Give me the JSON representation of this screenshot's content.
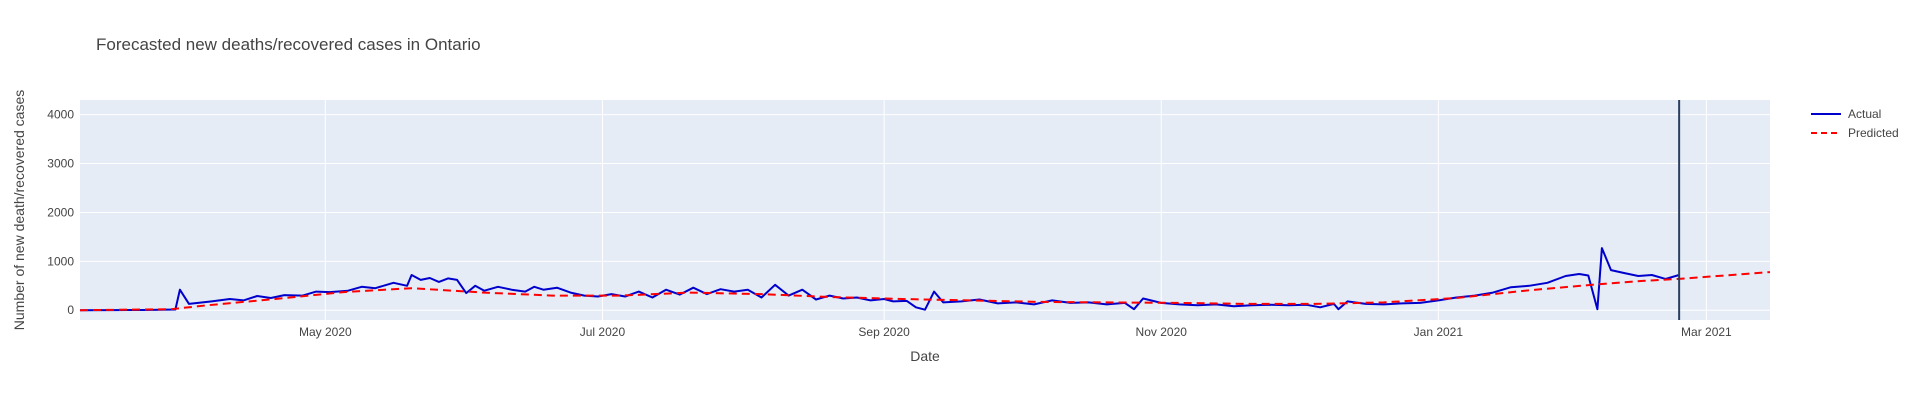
{
  "chart_data": {
    "type": "line",
    "title": "Forecasted new deaths/recovered cases in Ontario",
    "xlabel": "Date",
    "ylabel": "Number of new death/recovered cases",
    "xlim": [
      "2020-03-08",
      "2021-03-15"
    ],
    "ylim": [
      -200,
      4300
    ],
    "x_ticks": [
      {
        "date": "2020-05-01",
        "label": "May 2020"
      },
      {
        "date": "2020-07-01",
        "label": "Jul 2020"
      },
      {
        "date": "2020-09-01",
        "label": "Sep 2020"
      },
      {
        "date": "2020-11-01",
        "label": "Nov 2020"
      },
      {
        "date": "2021-01-01",
        "label": "Jan 2021"
      },
      {
        "date": "2021-03-01",
        "label": "Mar 2021"
      }
    ],
    "y_ticks": [
      0,
      1000,
      2000,
      3000,
      4000
    ],
    "grid": true,
    "legend_position": "top-right",
    "forecast_marker_date": "2021-02-23",
    "colors": {
      "plot_bg": "#e5ecf6",
      "grid": "#ffffff",
      "actual": "#0000cd",
      "predicted": "#ff0000",
      "marker": "#2a3f5f"
    },
    "series": [
      {
        "name": "Actual",
        "style": "solid",
        "points": [
          [
            "2020-03-08",
            0
          ],
          [
            "2020-03-15",
            2
          ],
          [
            "2020-03-22",
            5
          ],
          [
            "2020-03-29",
            15
          ],
          [
            "2020-03-30",
            420
          ],
          [
            "2020-04-01",
            130
          ],
          [
            "2020-04-06",
            180
          ],
          [
            "2020-04-10",
            230
          ],
          [
            "2020-04-13",
            200
          ],
          [
            "2020-04-16",
            290
          ],
          [
            "2020-04-19",
            250
          ],
          [
            "2020-04-22",
            310
          ],
          [
            "2020-04-26",
            300
          ],
          [
            "2020-04-29",
            380
          ],
          [
            "2020-05-02",
            370
          ],
          [
            "2020-05-06",
            400
          ],
          [
            "2020-05-09",
            480
          ],
          [
            "2020-05-12",
            450
          ],
          [
            "2020-05-16",
            560
          ],
          [
            "2020-05-19",
            500
          ],
          [
            "2020-05-20",
            720
          ],
          [
            "2020-05-22",
            620
          ],
          [
            "2020-05-24",
            660
          ],
          [
            "2020-05-26",
            580
          ],
          [
            "2020-05-28",
            650
          ],
          [
            "2020-05-30",
            620
          ],
          [
            "2020-06-01",
            350
          ],
          [
            "2020-06-03",
            500
          ],
          [
            "2020-06-05",
            400
          ],
          [
            "2020-06-08",
            480
          ],
          [
            "2020-06-11",
            420
          ],
          [
            "2020-06-14",
            380
          ],
          [
            "2020-06-16",
            480
          ],
          [
            "2020-06-18",
            420
          ],
          [
            "2020-06-21",
            460
          ],
          [
            "2020-06-24",
            360
          ],
          [
            "2020-06-27",
            300
          ],
          [
            "2020-06-30",
            280
          ],
          [
            "2020-07-03",
            330
          ],
          [
            "2020-07-06",
            280
          ],
          [
            "2020-07-09",
            380
          ],
          [
            "2020-07-12",
            260
          ],
          [
            "2020-07-15",
            420
          ],
          [
            "2020-07-18",
            320
          ],
          [
            "2020-07-21",
            460
          ],
          [
            "2020-07-24",
            330
          ],
          [
            "2020-07-27",
            430
          ],
          [
            "2020-07-30",
            380
          ],
          [
            "2020-08-02",
            420
          ],
          [
            "2020-08-05",
            260
          ],
          [
            "2020-08-08",
            520
          ],
          [
            "2020-08-11",
            300
          ],
          [
            "2020-08-14",
            420
          ],
          [
            "2020-08-17",
            220
          ],
          [
            "2020-08-20",
            300
          ],
          [
            "2020-08-23",
            240
          ],
          [
            "2020-08-26",
            260
          ],
          [
            "2020-08-29",
            200
          ],
          [
            "2020-09-01",
            230
          ],
          [
            "2020-09-03",
            180
          ],
          [
            "2020-09-06",
            190
          ],
          [
            "2020-09-08",
            60
          ],
          [
            "2020-09-10",
            10
          ],
          [
            "2020-09-12",
            380
          ],
          [
            "2020-09-14",
            160
          ],
          [
            "2020-09-18",
            180
          ],
          [
            "2020-09-22",
            220
          ],
          [
            "2020-09-26",
            140
          ],
          [
            "2020-09-30",
            160
          ],
          [
            "2020-10-04",
            120
          ],
          [
            "2020-10-08",
            200
          ],
          [
            "2020-10-12",
            150
          ],
          [
            "2020-10-16",
            160
          ],
          [
            "2020-10-20",
            120
          ],
          [
            "2020-10-24",
            150
          ],
          [
            "2020-10-26",
            20
          ],
          [
            "2020-10-28",
            240
          ],
          [
            "2020-11-01",
            150
          ],
          [
            "2020-11-05",
            120
          ],
          [
            "2020-11-09",
            100
          ],
          [
            "2020-11-13",
            120
          ],
          [
            "2020-11-17",
            80
          ],
          [
            "2020-11-21",
            100
          ],
          [
            "2020-11-25",
            110
          ],
          [
            "2020-11-29",
            100
          ],
          [
            "2020-12-03",
            110
          ],
          [
            "2020-12-06",
            60
          ],
          [
            "2020-12-09",
            130
          ],
          [
            "2020-12-10",
            20
          ],
          [
            "2020-12-12",
            180
          ],
          [
            "2020-12-16",
            130
          ],
          [
            "2020-12-20",
            120
          ],
          [
            "2020-12-24",
            140
          ],
          [
            "2020-12-28",
            150
          ],
          [
            "2021-01-01",
            200
          ],
          [
            "2021-01-05",
            260
          ],
          [
            "2021-01-09",
            300
          ],
          [
            "2021-01-13",
            360
          ],
          [
            "2021-01-17",
            470
          ],
          [
            "2021-01-21",
            500
          ],
          [
            "2021-01-25",
            560
          ],
          [
            "2021-01-29",
            700
          ],
          [
            "2021-02-01",
            740
          ],
          [
            "2021-02-03",
            710
          ],
          [
            "2021-02-05",
            20
          ],
          [
            "2021-02-06",
            1270
          ],
          [
            "2021-02-08",
            820
          ],
          [
            "2021-02-11",
            760
          ],
          [
            "2021-02-14",
            700
          ],
          [
            "2021-02-17",
            720
          ],
          [
            "2021-02-20",
            640
          ],
          [
            "2021-02-23",
            720
          ]
        ]
      },
      {
        "name": "Predicted",
        "style": "dashed",
        "points": [
          [
            "2020-03-08",
            0
          ],
          [
            "2020-03-28",
            20
          ],
          [
            "2020-04-05",
            100
          ],
          [
            "2020-04-20",
            230
          ],
          [
            "2020-05-05",
            370
          ],
          [
            "2020-05-20",
            450
          ],
          [
            "2020-06-05",
            360
          ],
          [
            "2020-06-20",
            300
          ],
          [
            "2020-07-05",
            300
          ],
          [
            "2020-07-20",
            360
          ],
          [
            "2020-08-05",
            330
          ],
          [
            "2020-08-20",
            270
          ],
          [
            "2020-09-05",
            230
          ],
          [
            "2020-09-20",
            200
          ],
          [
            "2020-10-05",
            170
          ],
          [
            "2020-10-20",
            160
          ],
          [
            "2020-11-05",
            150
          ],
          [
            "2020-11-20",
            130
          ],
          [
            "2020-12-05",
            130
          ],
          [
            "2020-12-20",
            160
          ],
          [
            "2021-01-05",
            250
          ],
          [
            "2021-01-20",
            400
          ],
          [
            "2021-02-05",
            530
          ],
          [
            "2021-02-15",
            600
          ],
          [
            "2021-02-23",
            640
          ],
          [
            "2021-03-15",
            780
          ]
        ]
      }
    ]
  }
}
